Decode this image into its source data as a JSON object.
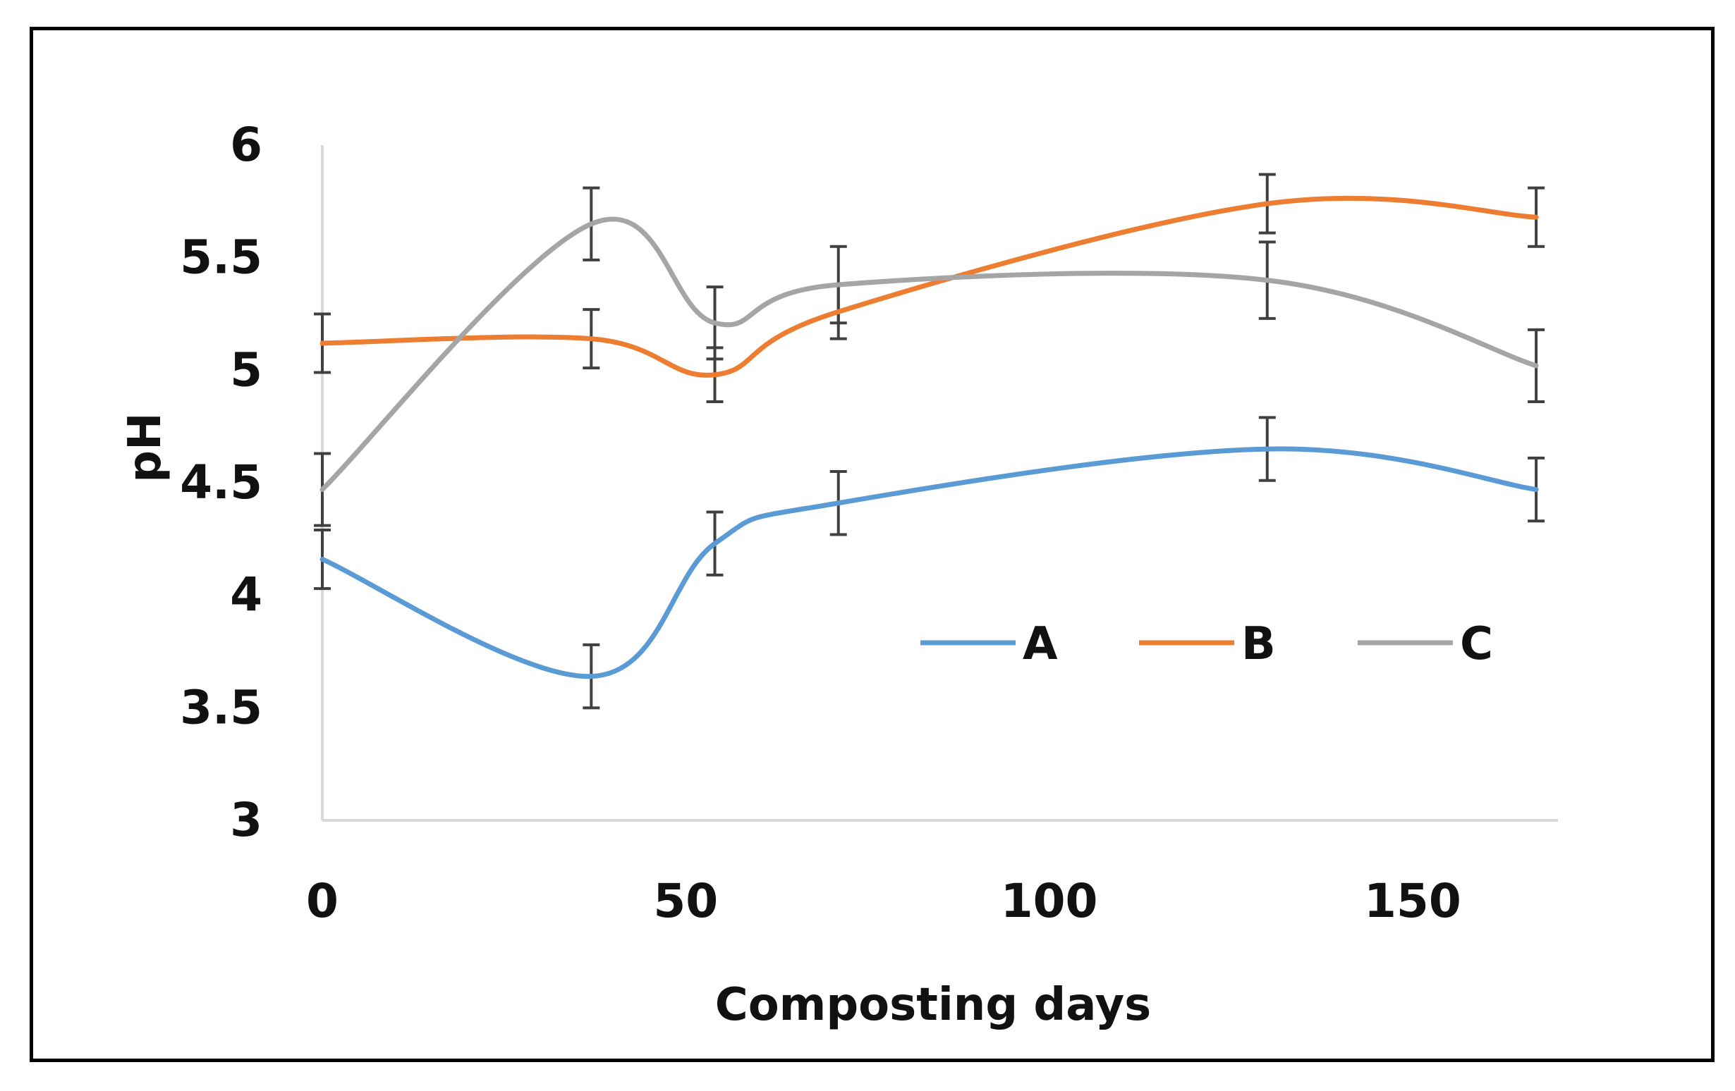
{
  "chart_data": {
    "type": "line",
    "xlabel": "Composting days",
    "ylabel": "pH",
    "xlim": [
      0,
      170
    ],
    "ylim": [
      3,
      6
    ],
    "x_ticks": [
      0,
      50,
      100,
      150
    ],
    "y_ticks": [
      3,
      3.5,
      4,
      4.5,
      5,
      5.5,
      6
    ],
    "grid": false,
    "smooth": true,
    "legend_position": "lower-right inside plot",
    "series": [
      {
        "name": "A",
        "color": "#5B9BD5",
        "x": [
          0,
          37,
          54,
          71,
          130,
          167
        ],
        "y": [
          4.16,
          3.64,
          4.23,
          4.41,
          4.65,
          4.47
        ],
        "error": [
          0.13,
          0.14,
          0.14,
          0.14,
          0.14,
          0.14
        ]
      },
      {
        "name": "B",
        "color": "#ED7D31",
        "x": [
          0,
          37,
          54,
          71,
          130,
          167
        ],
        "y": [
          5.12,
          5.14,
          4.98,
          5.26,
          5.74,
          5.68
        ],
        "error": [
          0.13,
          0.13,
          0.12,
          0.12,
          0.13,
          0.13
        ]
      },
      {
        "name": "C",
        "color": "#A5A5A5",
        "x": [
          0,
          37,
          54,
          71,
          130,
          167
        ],
        "y": [
          4.47,
          5.65,
          5.21,
          5.38,
          5.4,
          5.02
        ],
        "error": [
          0.16,
          0.16,
          0.16,
          0.17,
          0.17,
          0.16
        ]
      }
    ]
  }
}
